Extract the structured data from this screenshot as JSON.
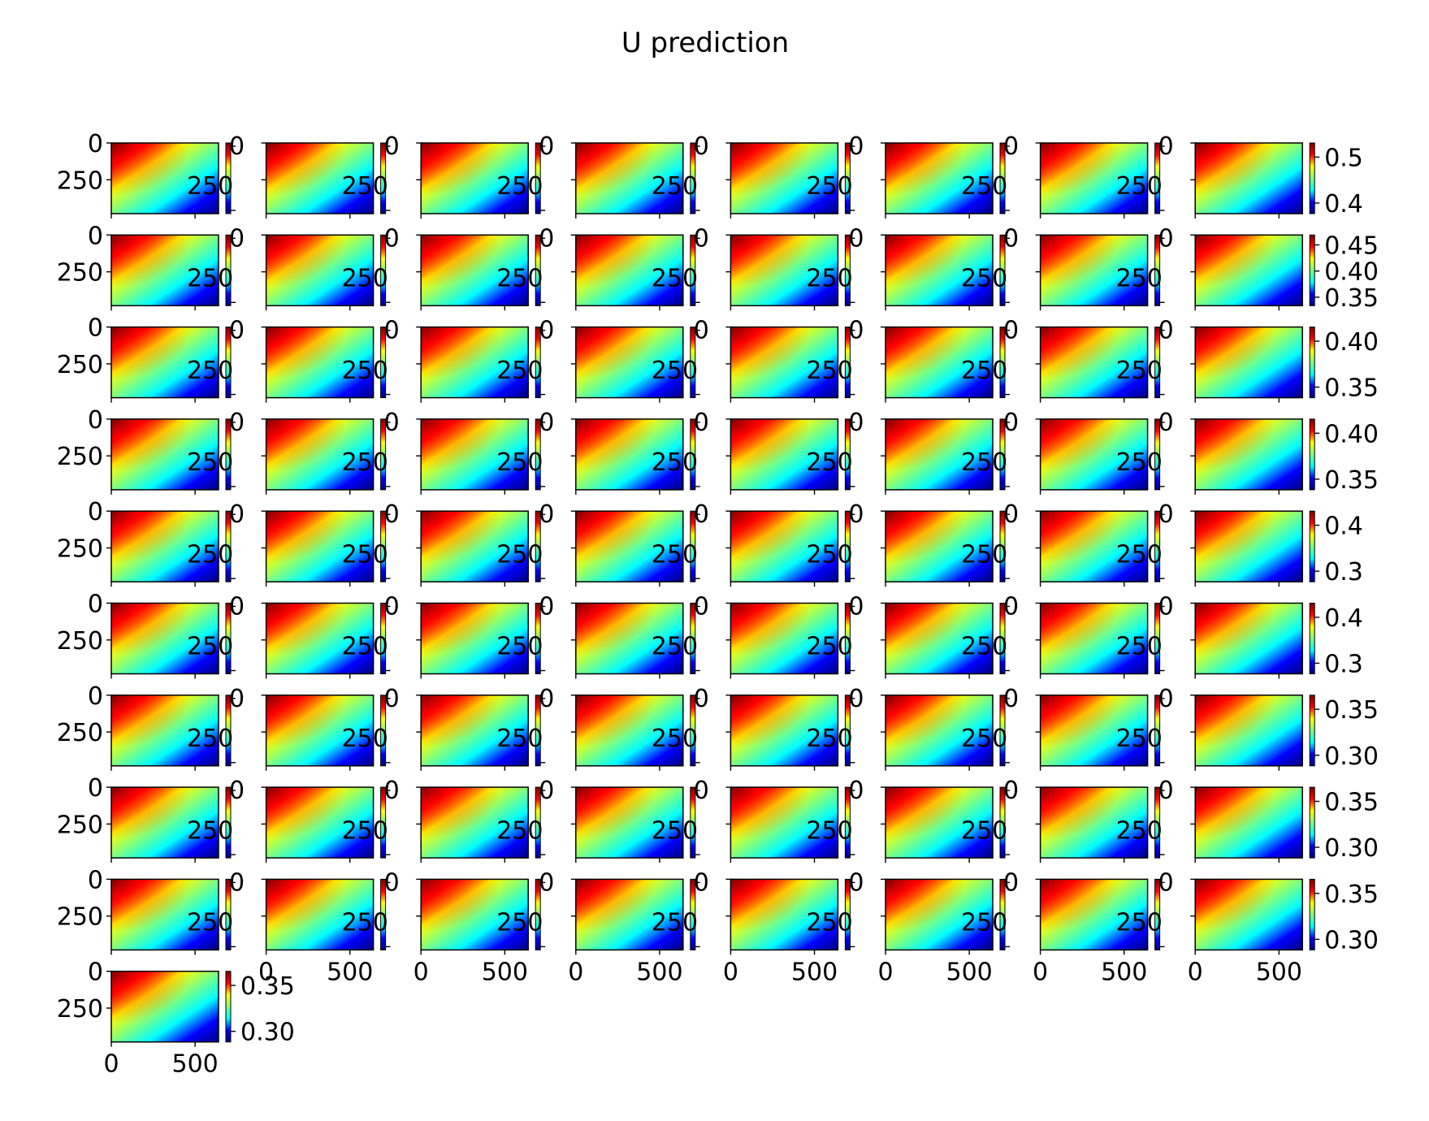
{
  "figure": {
    "title": "U prediction",
    "grid": {
      "rows": 10,
      "cols": 8,
      "panels": 73
    },
    "colormap": "jet",
    "colormap_stops": [
      "#00007f",
      "#0000ff",
      "#00ffff",
      "#7fff7f",
      "#ffff00",
      "#ff0000",
      "#7f0000"
    ]
  },
  "chart_data": {
    "type": "heatmap",
    "title": "U prediction",
    "description_values": "Grid of 73 image panels, each showing a U-field heatmap with its own colorbar",
    "xlim": [
      0,
      640
    ],
    "ylim": [
      480,
      0
    ],
    "axis_tick_labels": {
      "y": [
        "0",
        "250"
      ],
      "x": [
        "0",
        "500"
      ],
      "colorbar_overlap_label": "250"
    },
    "colorbars_right_column": [
      {
        "row": 1,
        "ticks": [
          "0.5",
          "0.4"
        ]
      },
      {
        "row": 2,
        "ticks": [
          "0.45",
          "0.40",
          "0.35"
        ]
      },
      {
        "row": 3,
        "ticks": [
          "0.40",
          "0.35"
        ]
      },
      {
        "row": 4,
        "ticks": [
          "0.40",
          "0.35"
        ]
      },
      {
        "row": 5,
        "ticks": [
          "0.4",
          "0.3"
        ]
      },
      {
        "row": 6,
        "ticks": [
          "0.4",
          "0.3"
        ]
      },
      {
        "row": 7,
        "ticks": [
          "0.35",
          "0.30"
        ]
      },
      {
        "row": 8,
        "ticks": [
          "0.35",
          "0.30"
        ]
      },
      {
        "row": 9,
        "ticks": [
          "0.35",
          "0.30"
        ]
      },
      {
        "row": 10,
        "ticks": [
          "0.35",
          "0.30"
        ]
      }
    ]
  }
}
